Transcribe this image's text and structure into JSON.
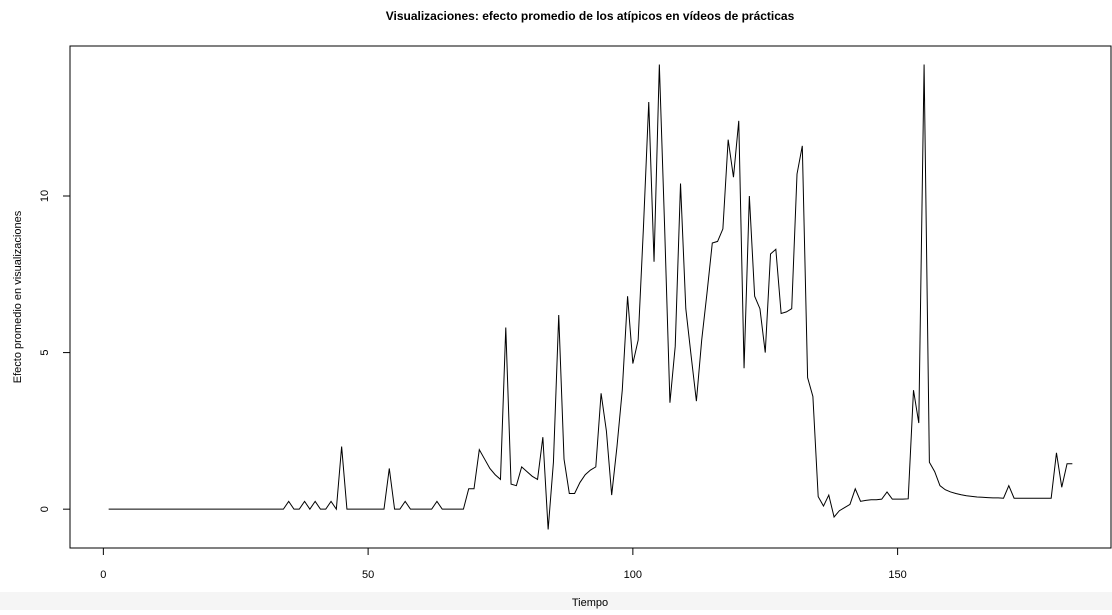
{
  "chart_data": {
    "type": "line",
    "title": "Visualizaciones: efecto promedio de los atípicos en vídeos de prácticas",
    "x_label": "Tiempo",
    "y_label": "Efecto promedio en visualizaciones",
    "x": [
      1,
      2,
      3,
      4,
      5,
      6,
      7,
      8,
      9,
      10,
      11,
      12,
      13,
      14,
      15,
      16,
      17,
      18,
      19,
      20,
      21,
      22,
      23,
      24,
      25,
      26,
      27,
      28,
      29,
      30,
      31,
      32,
      33,
      34,
      35,
      36,
      37,
      38,
      39,
      40,
      41,
      42,
      43,
      44,
      45,
      46,
      47,
      48,
      49,
      50,
      51,
      52,
      53,
      54,
      55,
      56,
      57,
      58,
      59,
      60,
      61,
      62,
      63,
      64,
      65,
      66,
      67,
      68,
      69,
      70,
      71,
      72,
      73,
      74,
      75,
      76,
      77,
      78,
      79,
      80,
      81,
      82,
      83,
      84,
      85,
      86,
      87,
      88,
      89,
      90,
      91,
      92,
      93,
      94,
      95,
      96,
      97,
      98,
      99,
      100,
      101,
      102,
      103,
      104,
      105,
      106,
      107,
      108,
      109,
      110,
      111,
      112,
      113,
      114,
      115,
      116,
      117,
      118,
      119,
      120,
      121,
      122,
      123,
      124,
      125,
      126,
      127,
      128,
      129,
      130,
      131,
      132,
      133,
      134,
      135,
      136,
      137,
      138,
      139,
      140,
      141,
      142,
      143,
      144,
      145,
      146,
      147,
      148,
      149,
      150,
      151,
      152,
      153,
      154,
      155,
      156,
      157,
      158,
      159,
      160,
      161,
      162,
      163,
      164,
      165,
      166,
      167,
      168,
      169,
      170,
      171,
      172,
      173,
      174,
      175,
      176,
      177,
      178,
      179,
      180,
      181,
      182,
      183
    ],
    "series": [
      {
        "color": "#000000",
        "values": [
          0,
          0,
          0,
          0,
          0,
          0,
          0,
          0,
          0,
          0,
          0,
          0,
          0,
          0,
          0,
          0,
          0,
          0,
          0,
          0,
          0,
          0,
          0,
          0,
          0,
          0,
          0,
          0,
          0,
          0,
          0,
          0,
          0,
          0,
          0.25,
          0,
          0,
          0.25,
          0,
          0.25,
          0,
          0,
          0.25,
          0,
          2.0,
          0,
          0,
          0,
          0,
          0,
          0,
          0,
          0,
          1.3,
          0,
          0,
          0.25,
          0,
          0,
          0,
          0,
          0,
          0.25,
          0,
          0,
          0,
          0,
          0,
          0.65,
          0.65,
          1.9,
          1.6,
          1.3,
          1.1,
          0.95,
          5.8,
          0.8,
          0.75,
          1.35,
          1.2,
          1.05,
          0.95,
          2.3,
          -0.65,
          1.5,
          6.2,
          1.6,
          0.5,
          0.5,
          0.85,
          1.1,
          1.25,
          1.35,
          3.7,
          2.5,
          0.45,
          2.0,
          3.8,
          6.8,
          4.65,
          5.4,
          9.0,
          13.0,
          7.9,
          14.2,
          9.0,
          3.4,
          5.2,
          10.4,
          6.4,
          4.9,
          3.45,
          5.4,
          6.9,
          8.5,
          8.55,
          8.95,
          11.8,
          10.6,
          12.4,
          4.5,
          10.0,
          6.8,
          6.4,
          5.0,
          8.15,
          8.3,
          6.25,
          6.3,
          6.4,
          10.7,
          11.6,
          4.2,
          3.6,
          0.4,
          0.1,
          0.45,
          -0.25,
          -0.05,
          0.05,
          0.15,
          0.65,
          0.25,
          0.28,
          0.3,
          0.3,
          0.32,
          0.55,
          0.32,
          0.32,
          0.32,
          0.33,
          3.8,
          2.75,
          14.2,
          1.5,
          1.2,
          0.75,
          0.62,
          0.55,
          0.5,
          0.46,
          0.43,
          0.41,
          0.39,
          0.38,
          0.37,
          0.36,
          0.36,
          0.35,
          0.75,
          0.35,
          0.35,
          0.35,
          0.35,
          0.35,
          0.35,
          0.35,
          0.35,
          1.8,
          0.7,
          1.45,
          1.45
        ]
      }
    ],
    "xlim": [
      -6.3,
      190.3
    ],
    "ylim": [
      -1.24,
      14.79
    ],
    "xticks": [
      0,
      50,
      100,
      150
    ],
    "yticks": [
      0,
      5,
      10
    ]
  }
}
